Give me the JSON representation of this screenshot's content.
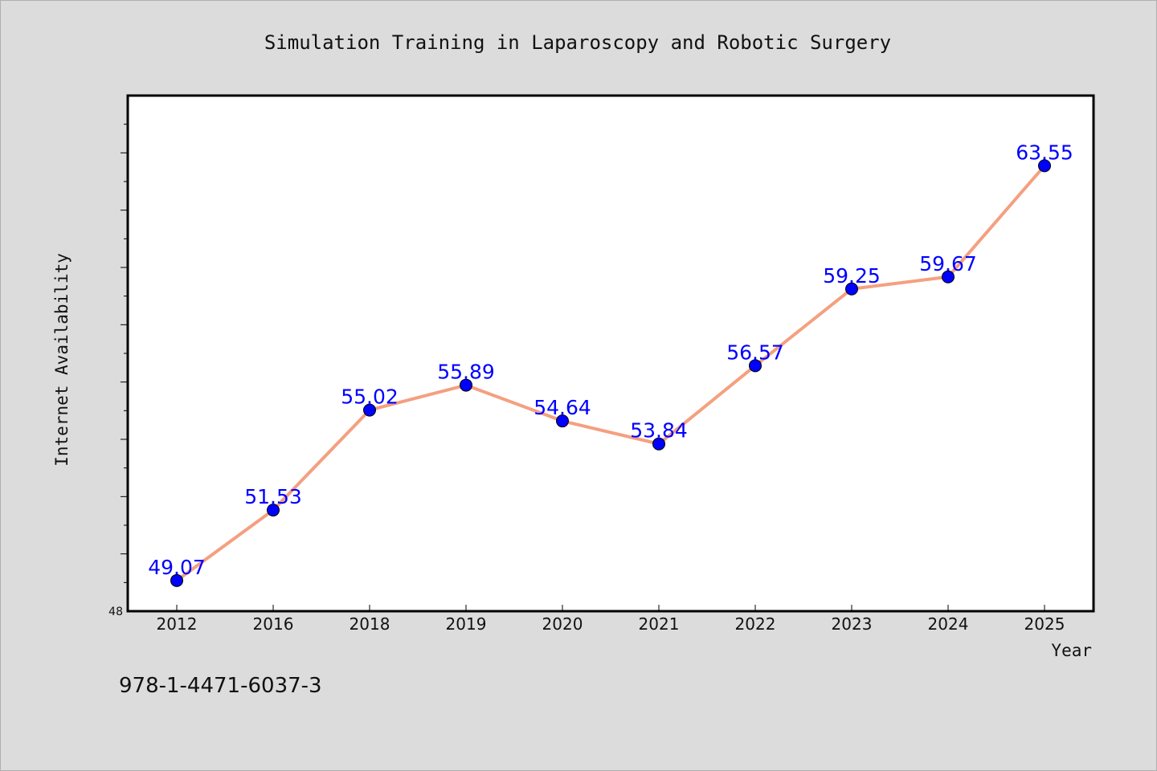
{
  "chart_data": {
    "type": "line",
    "title": "Simulation Training in Laparoscopy and Robotic Surgery",
    "xlabel": "Year",
    "ylabel": "Internet Availability",
    "categories": [
      "2012",
      "2016",
      "2018",
      "2019",
      "2020",
      "2021",
      "2022",
      "2023",
      "2024",
      "2025"
    ],
    "series": [
      {
        "values": [
          49.07,
          51.53,
          55.02,
          55.89,
          54.64,
          53.84,
          56.57,
          59.25,
          59.67,
          63.55
        ],
        "labels": [
          "49.07",
          "51.53",
          "55.02",
          "55.89",
          "54.64",
          "53.84",
          "56.57",
          "59.25",
          "59.67",
          "63.55"
        ],
        "line_color": "#f4a080",
        "marker_color": "#0000ff"
      }
    ],
    "ylim": [
      48,
      66
    ],
    "yticks_labeled": [
      "48"
    ],
    "grid": false,
    "legend": "none",
    "label_color": "#0000ff"
  },
  "footer": {
    "text": "978-1-4471-6037-3"
  }
}
